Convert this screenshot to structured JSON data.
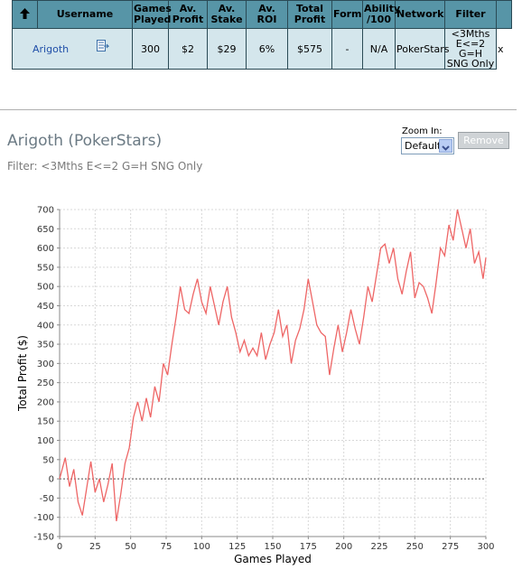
{
  "table": {
    "headers": {
      "username": "Username",
      "games": [
        "Games",
        "Played"
      ],
      "profit": [
        "Av.",
        "Profit"
      ],
      "stake": [
        "Av.",
        "Stake"
      ],
      "roi": "Av. ROI",
      "total": [
        "Total",
        "Profit"
      ],
      "form": "Form",
      "ability": [
        "Ability",
        "/100"
      ],
      "network": "Network",
      "filter": "Filter"
    },
    "row": {
      "username": "Arigoth",
      "games": "300",
      "profit": "$2",
      "stake": "$29",
      "roi": "6%",
      "total": "$575",
      "form": "-",
      "ability": "N/A",
      "network": "PokerStars",
      "filter": [
        "<3Mths",
        "E<=2 G=H",
        "SNG Only"
      ],
      "close": "x"
    }
  },
  "player": {
    "title": "Arigoth (PokerStars)",
    "filter_label": "Filter:",
    "filter_value": "<3Mths E<=2 G=H SNG Only"
  },
  "zoom": {
    "label": "Zoom In:",
    "value": "Default"
  },
  "remove_label": "Remove",
  "colors": {
    "header_bg": "#5795a7",
    "row_bg": "#d4e6ec",
    "series": "#ee6666",
    "grid": "#d8d8d8"
  },
  "chart_data": {
    "type": "line",
    "xlabel": "Games Played",
    "ylabel": "Total Profit ($)",
    "xlim": [
      0,
      300
    ],
    "ylim": [
      -150,
      700
    ],
    "xticks": [
      0,
      25,
      50,
      75,
      100,
      125,
      150,
      175,
      200,
      225,
      250,
      275,
      300
    ],
    "yticks": [
      -150,
      -100,
      -50,
      0,
      50,
      100,
      150,
      200,
      250,
      300,
      350,
      400,
      450,
      500,
      550,
      600,
      650,
      700
    ],
    "grid": true,
    "zero_line": true,
    "series": [
      {
        "x": [
          0,
          4,
          7,
          10,
          13,
          16,
          19,
          22,
          25,
          28,
          31,
          34,
          37,
          40,
          43,
          46,
          49,
          52,
          55,
          58,
          61,
          64,
          67,
          70,
          73,
          76,
          79,
          82,
          85,
          88,
          91,
          94,
          97,
          100,
          103,
          106,
          109,
          112,
          115,
          118,
          121,
          124,
          127,
          130,
          133,
          136,
          139,
          142,
          145,
          148,
          151,
          154,
          157,
          160,
          163,
          166,
          169,
          172,
          175,
          178,
          181,
          184,
          187,
          190,
          193,
          196,
          199,
          202,
          205,
          208,
          211,
          214,
          217,
          220,
          223,
          226,
          229,
          232,
          235,
          238,
          241,
          244,
          247,
          250,
          253,
          256,
          259,
          262,
          265,
          268,
          271,
          274,
          277,
          280,
          283,
          286,
          289,
          292,
          295,
          298,
          300
        ],
        "y": [
          0,
          55,
          -20,
          25,
          -60,
          -95,
          -25,
          45,
          -35,
          0,
          -60,
          -15,
          40,
          -110,
          -40,
          40,
          80,
          160,
          200,
          150,
          210,
          160,
          240,
          200,
          300,
          270,
          350,
          420,
          500,
          440,
          430,
          480,
          520,
          460,
          430,
          500,
          450,
          400,
          460,
          500,
          420,
          380,
          330,
          360,
          320,
          340,
          320,
          380,
          310,
          350,
          380,
          440,
          370,
          400,
          300,
          360,
          390,
          440,
          520,
          460,
          400,
          380,
          370,
          270,
          340,
          400,
          330,
          380,
          440,
          390,
          350,
          420,
          500,
          460,
          530,
          600,
          610,
          560,
          600,
          520,
          480,
          540,
          590,
          470,
          510,
          500,
          470,
          430,
          510,
          600,
          580,
          660,
          620,
          700,
          650,
          600,
          650,
          560,
          590,
          520,
          575
        ]
      }
    ]
  }
}
